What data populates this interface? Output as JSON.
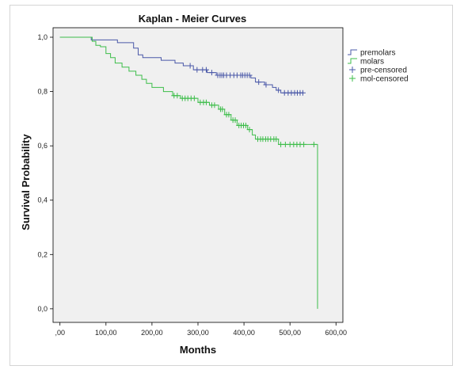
{
  "chart_data": {
    "type": "line",
    "title": "Kaplan - Meier  Curves",
    "xlabel": "Months",
    "ylabel": "Survival Probability",
    "xlim": [
      -15,
      615
    ],
    "ylim": [
      -0.05,
      1.035
    ],
    "x_ticks": [
      {
        "value": 0,
        "label": ",00"
      },
      {
        "value": 100,
        "label": "100,00"
      },
      {
        "value": 200,
        "label": "200,00"
      },
      {
        "value": 300,
        "label": "300,00"
      },
      {
        "value": 400,
        "label": "400,00"
      },
      {
        "value": 500,
        "label": "500,00"
      },
      {
        "value": 600,
        "label": "600,00"
      }
    ],
    "y_ticks": [
      {
        "value": 0.0,
        "label": "0,0"
      },
      {
        "value": 0.2,
        "label": "0,2"
      },
      {
        "value": 0.4,
        "label": "0,4"
      },
      {
        "value": 0.6,
        "label": "0,6"
      },
      {
        "value": 0.8,
        "label": "0,8"
      },
      {
        "value": 1.0,
        "label": "1,0"
      }
    ],
    "grid": false,
    "legend_position": "top-right",
    "plot_background": "#f0f0f0",
    "series": [
      {
        "name": "premolars",
        "color": "#4a58a8",
        "kind": "step",
        "points": [
          [
            0,
            1.0
          ],
          [
            68,
            1.0
          ],
          [
            68,
            0.99
          ],
          [
            125,
            0.99
          ],
          [
            125,
            0.98
          ],
          [
            160,
            0.98
          ],
          [
            160,
            0.96
          ],
          [
            170,
            0.96
          ],
          [
            170,
            0.935
          ],
          [
            180,
            0.935
          ],
          [
            180,
            0.925
          ],
          [
            220,
            0.925
          ],
          [
            220,
            0.915
          ],
          [
            250,
            0.915
          ],
          [
            250,
            0.905
          ],
          [
            268,
            0.905
          ],
          [
            268,
            0.895
          ],
          [
            290,
            0.895
          ],
          [
            290,
            0.88
          ],
          [
            320,
            0.88
          ],
          [
            320,
            0.87
          ],
          [
            340,
            0.87
          ],
          [
            340,
            0.86
          ],
          [
            415,
            0.86
          ],
          [
            415,
            0.85
          ],
          [
            425,
            0.85
          ],
          [
            425,
            0.835
          ],
          [
            445,
            0.835
          ],
          [
            445,
            0.825
          ],
          [
            462,
            0.825
          ],
          [
            462,
            0.815
          ],
          [
            470,
            0.815
          ],
          [
            470,
            0.805
          ],
          [
            480,
            0.805
          ],
          [
            480,
            0.795
          ],
          [
            530,
            0.795
          ]
        ],
        "censor_marks": [
          [
            283,
            0.895
          ],
          [
            298,
            0.88
          ],
          [
            310,
            0.88
          ],
          [
            318,
            0.88
          ],
          [
            330,
            0.87
          ],
          [
            343,
            0.86
          ],
          [
            348,
            0.86
          ],
          [
            352,
            0.86
          ],
          [
            356,
            0.86
          ],
          [
            362,
            0.86
          ],
          [
            370,
            0.86
          ],
          [
            378,
            0.86
          ],
          [
            385,
            0.86
          ],
          [
            393,
            0.86
          ],
          [
            397,
            0.86
          ],
          [
            402,
            0.86
          ],
          [
            407,
            0.86
          ],
          [
            412,
            0.86
          ],
          [
            432,
            0.835
          ],
          [
            448,
            0.825
          ],
          [
            475,
            0.805
          ],
          [
            488,
            0.795
          ],
          [
            496,
            0.795
          ],
          [
            503,
            0.795
          ],
          [
            510,
            0.795
          ],
          [
            516,
            0.795
          ],
          [
            522,
            0.795
          ],
          [
            528,
            0.795
          ]
        ]
      },
      {
        "name": "molars",
        "color": "#3dbd4a",
        "kind": "step",
        "points": [
          [
            0,
            1.0
          ],
          [
            70,
            1.0
          ],
          [
            70,
            0.985
          ],
          [
            78,
            0.985
          ],
          [
            78,
            0.97
          ],
          [
            88,
            0.97
          ],
          [
            88,
            0.965
          ],
          [
            100,
            0.965
          ],
          [
            100,
            0.94
          ],
          [
            110,
            0.94
          ],
          [
            110,
            0.925
          ],
          [
            120,
            0.925
          ],
          [
            120,
            0.905
          ],
          [
            135,
            0.905
          ],
          [
            135,
            0.89
          ],
          [
            150,
            0.89
          ],
          [
            150,
            0.875
          ],
          [
            165,
            0.875
          ],
          [
            165,
            0.86
          ],
          [
            178,
            0.86
          ],
          [
            178,
            0.845
          ],
          [
            188,
            0.845
          ],
          [
            188,
            0.83
          ],
          [
            200,
            0.83
          ],
          [
            200,
            0.815
          ],
          [
            225,
            0.815
          ],
          [
            225,
            0.8
          ],
          [
            245,
            0.8
          ],
          [
            245,
            0.785
          ],
          [
            262,
            0.785
          ],
          [
            262,
            0.775
          ],
          [
            300,
            0.775
          ],
          [
            300,
            0.76
          ],
          [
            325,
            0.76
          ],
          [
            325,
            0.75
          ],
          [
            345,
            0.75
          ],
          [
            345,
            0.735
          ],
          [
            358,
            0.735
          ],
          [
            358,
            0.715
          ],
          [
            372,
            0.715
          ],
          [
            372,
            0.695
          ],
          [
            385,
            0.695
          ],
          [
            385,
            0.675
          ],
          [
            408,
            0.675
          ],
          [
            408,
            0.66
          ],
          [
            418,
            0.66
          ],
          [
            418,
            0.64
          ],
          [
            425,
            0.64
          ],
          [
            425,
            0.625
          ],
          [
            475,
            0.625
          ],
          [
            475,
            0.605
          ],
          [
            560,
            0.605
          ],
          [
            560,
            0.0
          ]
        ],
        "censor_marks": [
          [
            248,
            0.785
          ],
          [
            255,
            0.785
          ],
          [
            266,
            0.775
          ],
          [
            272,
            0.775
          ],
          [
            278,
            0.775
          ],
          [
            285,
            0.775
          ],
          [
            292,
            0.775
          ],
          [
            305,
            0.76
          ],
          [
            312,
            0.76
          ],
          [
            318,
            0.76
          ],
          [
            330,
            0.75
          ],
          [
            336,
            0.75
          ],
          [
            349,
            0.735
          ],
          [
            353,
            0.735
          ],
          [
            362,
            0.715
          ],
          [
            367,
            0.715
          ],
          [
            376,
            0.695
          ],
          [
            381,
            0.695
          ],
          [
            389,
            0.675
          ],
          [
            394,
            0.675
          ],
          [
            399,
            0.675
          ],
          [
            404,
            0.675
          ],
          [
            412,
            0.66
          ],
          [
            430,
            0.625
          ],
          [
            436,
            0.625
          ],
          [
            441,
            0.625
          ],
          [
            447,
            0.625
          ],
          [
            452,
            0.625
          ],
          [
            458,
            0.625
          ],
          [
            465,
            0.625
          ],
          [
            470,
            0.625
          ],
          [
            480,
            0.605
          ],
          [
            490,
            0.605
          ],
          [
            500,
            0.605
          ],
          [
            508,
            0.605
          ],
          [
            515,
            0.605
          ],
          [
            522,
            0.605
          ],
          [
            530,
            0.605
          ],
          [
            552,
            0.605
          ]
        ]
      }
    ],
    "legend": [
      {
        "label": "premolars",
        "color": "#4a58a8",
        "symbol": "line"
      },
      {
        "label": "molars",
        "color": "#3dbd4a",
        "symbol": "line"
      },
      {
        "label": "pre-censored",
        "color": "#4a58a8",
        "symbol": "plus"
      },
      {
        "label": "mol-censored",
        "color": "#3dbd4a",
        "symbol": "plus"
      }
    ]
  }
}
